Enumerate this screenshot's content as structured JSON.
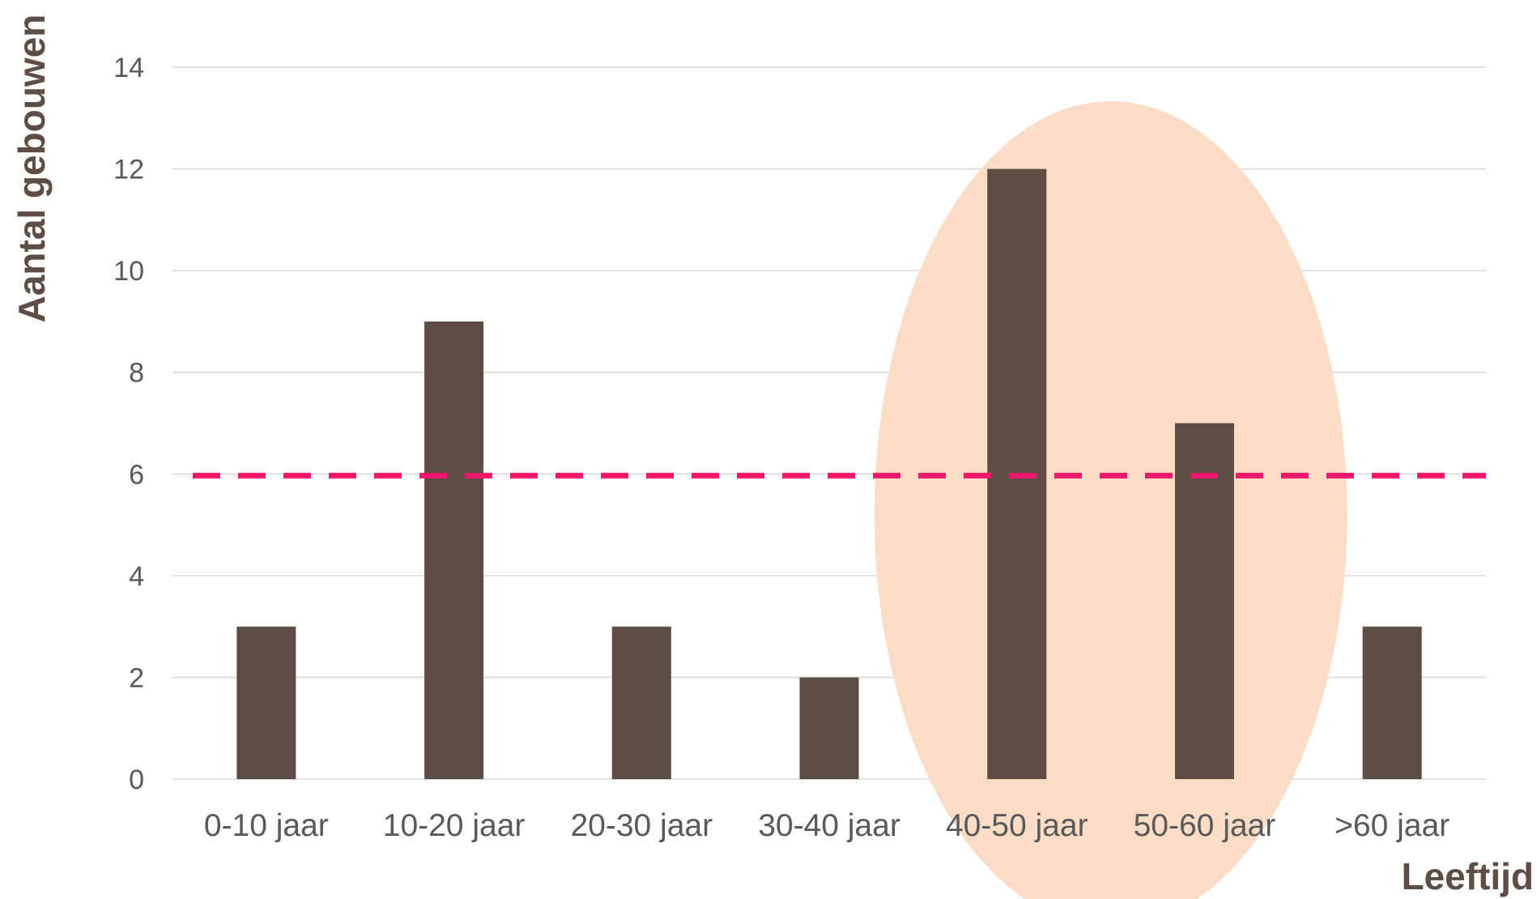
{
  "chart_data": {
    "type": "bar",
    "title": "",
    "xlabel": "Leeftijd",
    "ylabel": "Aantal gebouwen",
    "categories": [
      "0-10 jaar",
      "10-20 jaar",
      "20-30 jaar",
      "30-40 jaar",
      "40-50 jaar",
      "50-60 jaar",
      ">60 jaar"
    ],
    "values": [
      3,
      9,
      3,
      2,
      12,
      7,
      3
    ],
    "ylim": [
      0,
      14
    ],
    "yticks": [
      "0",
      "2",
      "4",
      "6",
      "8",
      "10",
      "12",
      "14"
    ],
    "grid": true,
    "legend": "none",
    "reference_line": {
      "value": 6,
      "style": "dashed"
    },
    "highlight": {
      "categories": [
        "40-50 jaar",
        "50-60 jaar"
      ],
      "shape": "ellipse"
    },
    "colors": {
      "bar": "#5d4d45",
      "reference_line": "#f0176a",
      "highlight": "#fbdcc6",
      "grid": "#d9d9d9",
      "tick_text": "#595959",
      "axis_title": "#5d4d45"
    }
  }
}
